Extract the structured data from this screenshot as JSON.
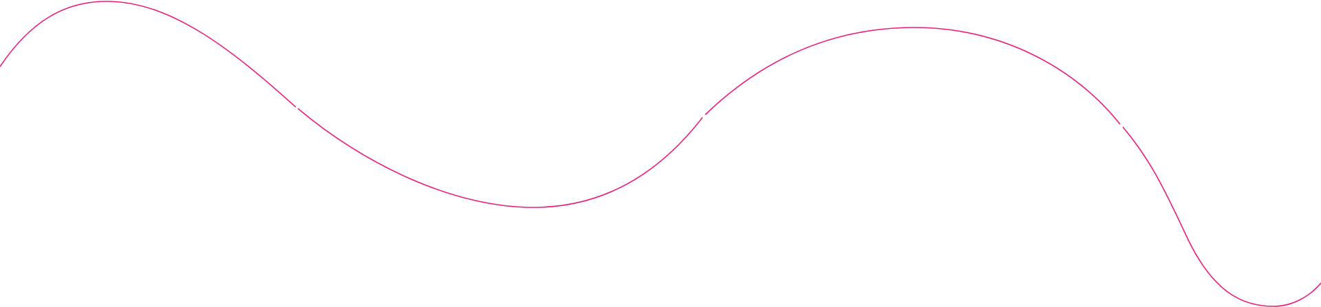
{
  "decoration": {
    "stroke_color": "#ec1b7b"
  }
}
